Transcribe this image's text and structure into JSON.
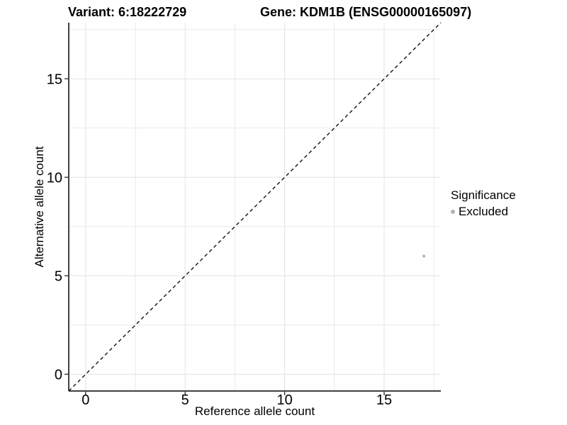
{
  "header": {
    "variant_title": "Variant: 6:18222729",
    "gene_title": "Gene: KDM1B (ENSG00000165097)"
  },
  "axes": {
    "x_label": "Reference allele count",
    "y_label": "Alternative allele count"
  },
  "legend": {
    "title": "Significance",
    "entries": [
      {
        "label": "Excluded",
        "color": "#b5b5b5"
      }
    ]
  },
  "colors": {
    "background": "#ffffff",
    "text": "#000000",
    "point": "#b9b9b9",
    "legend_key": "#b5b5b5",
    "grid_major": "#e3e3e3",
    "grid_minor": "#e9e9e9",
    "axis_line": "#404040",
    "identity_line": "#111111"
  },
  "chart_data": {
    "type": "scatter",
    "titles": [
      "Variant: 6:18222729",
      "Gene: KDM1B (ENSG00000165097)"
    ],
    "xlabel": "Reference allele count",
    "ylabel": "Alternative allele count",
    "xlim": [
      -0.85,
      17.85
    ],
    "ylim": [
      -0.85,
      17.85
    ],
    "x_ticks": [
      0,
      5,
      10,
      15
    ],
    "y_ticks": [
      0,
      5,
      10,
      15
    ],
    "x_minor_gridlines": [
      2.5,
      7.5,
      12.5,
      17.5
    ],
    "y_minor_gridlines": [
      2.5,
      7.5,
      12.5,
      17.5
    ],
    "grid": "major+minor",
    "legend_position": "right",
    "reference_line": {
      "type": "identity",
      "style": "dashed",
      "x1": -0.85,
      "y1": -0.85,
      "x2": 17.85,
      "y2": 17.85
    },
    "series": [
      {
        "name": "Excluded",
        "color": "#b9b9b9",
        "point_radius": 2.2,
        "points": [
          {
            "x": 17,
            "y": 6
          }
        ]
      }
    ]
  }
}
